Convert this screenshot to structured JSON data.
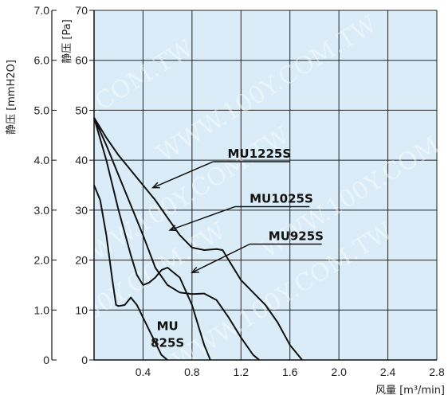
{
  "chart_data": {
    "type": "line",
    "xlabel": "风量 [m³/min]",
    "ylabel_left": "静压 [mmH2O]",
    "ylabel_right": "静压 [Pa]",
    "xlim": [
      0,
      2.8
    ],
    "ylim_pa": [
      0,
      70
    ],
    "ylim_mmh2o": [
      0,
      7.0
    ],
    "x_ticks": [
      "0.4",
      "0.8",
      "1.2",
      "1.6",
      "2.0",
      "2.4",
      "2.8"
    ],
    "y_ticks_pa": [
      "0",
      "10",
      "20",
      "30",
      "40",
      "50",
      "60",
      "70"
    ],
    "y_ticks_mmh2o": [
      "0",
      "1.0",
      "2.0",
      "3.0",
      "4.0",
      "5.0",
      "6.0",
      "7.0"
    ],
    "grid": true,
    "background_color": "#d9ecf7",
    "line_color": "#111111",
    "series": [
      {
        "name": "MU1225S",
        "x": [
          0,
          0.1,
          0.2,
          0.3,
          0.4,
          0.5,
          0.6,
          0.7,
          0.8,
          0.9,
          1.0,
          1.05,
          1.1,
          1.2,
          1.3,
          1.4,
          1.5,
          1.6,
          1.7
        ],
        "y": [
          48.5,
          44.5,
          41.0,
          38.0,
          35.0,
          32.0,
          28.5,
          25.0,
          22.5,
          22.0,
          22.2,
          22.0,
          20.0,
          16.0,
          13.5,
          11.0,
          7.5,
          3.0,
          0
        ]
      },
      {
        "name": "MU1025S",
        "x": [
          0,
          0.1,
          0.2,
          0.3,
          0.4,
          0.5,
          0.6,
          0.7,
          0.8,
          0.9,
          1.0,
          1.1,
          1.2,
          1.3,
          1.35
        ],
        "y": [
          48.5,
          43.0,
          37.0,
          31.0,
          25.0,
          18.5,
          15.0,
          13.5,
          13.2,
          13.3,
          12.0,
          8.5,
          4.5,
          1.0,
          0
        ]
      },
      {
        "name": "MU925S",
        "x": [
          0,
          0.1,
          0.2,
          0.3,
          0.35,
          0.4,
          0.45,
          0.5,
          0.55,
          0.6,
          0.7,
          0.8,
          0.85,
          0.9,
          0.95
        ],
        "y": [
          48.5,
          40.0,
          30.0,
          21.0,
          17.0,
          15.0,
          15.5,
          16.5,
          18.0,
          18.5,
          16.5,
          11.0,
          7.0,
          3.0,
          0
        ]
      },
      {
        "name": "MU825S",
        "label": [
          "MU",
          "825S"
        ],
        "x": [
          0,
          0.05,
          0.1,
          0.15,
          0.18,
          0.2,
          0.25,
          0.3,
          0.35,
          0.4,
          0.45,
          0.5,
          0.55,
          0.6
        ],
        "y": [
          35.0,
          32.0,
          25.0,
          16.0,
          11.0,
          10.8,
          11.0,
          12.5,
          11.0,
          8.5,
          6.0,
          3.5,
          1.0,
          0
        ]
      }
    ]
  },
  "watermark": "WWW.100Y.COM.TW"
}
